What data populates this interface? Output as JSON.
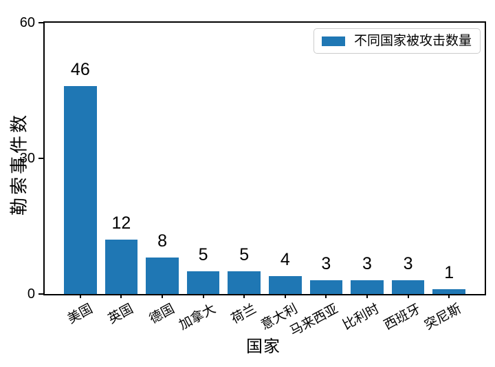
{
  "chart_data": {
    "type": "bar",
    "title": "",
    "categories": [
      "美国",
      "英国",
      "德国",
      "加拿大",
      "荷兰",
      "意大利",
      "马来西亚",
      "比利时",
      "西班牙",
      "突尼斯"
    ],
    "values": [
      46,
      12,
      8,
      5,
      5,
      4,
      3,
      3,
      3,
      1
    ],
    "value_labels_shown": true,
    "xlabel": "国家",
    "ylabel": "勒索事件数",
    "ylim": [
      0,
      60
    ],
    "yticks": [
      0,
      30,
      60
    ],
    "x_tick_rotation_deg": 28,
    "grid": false,
    "bar_color": "#1f77b4",
    "axis_color": "#000000",
    "legend": {
      "label": "不同国家被攻击数量",
      "position": "upper-right",
      "swatch_color": "#1f77b4",
      "border_color": "#cccccc"
    }
  }
}
